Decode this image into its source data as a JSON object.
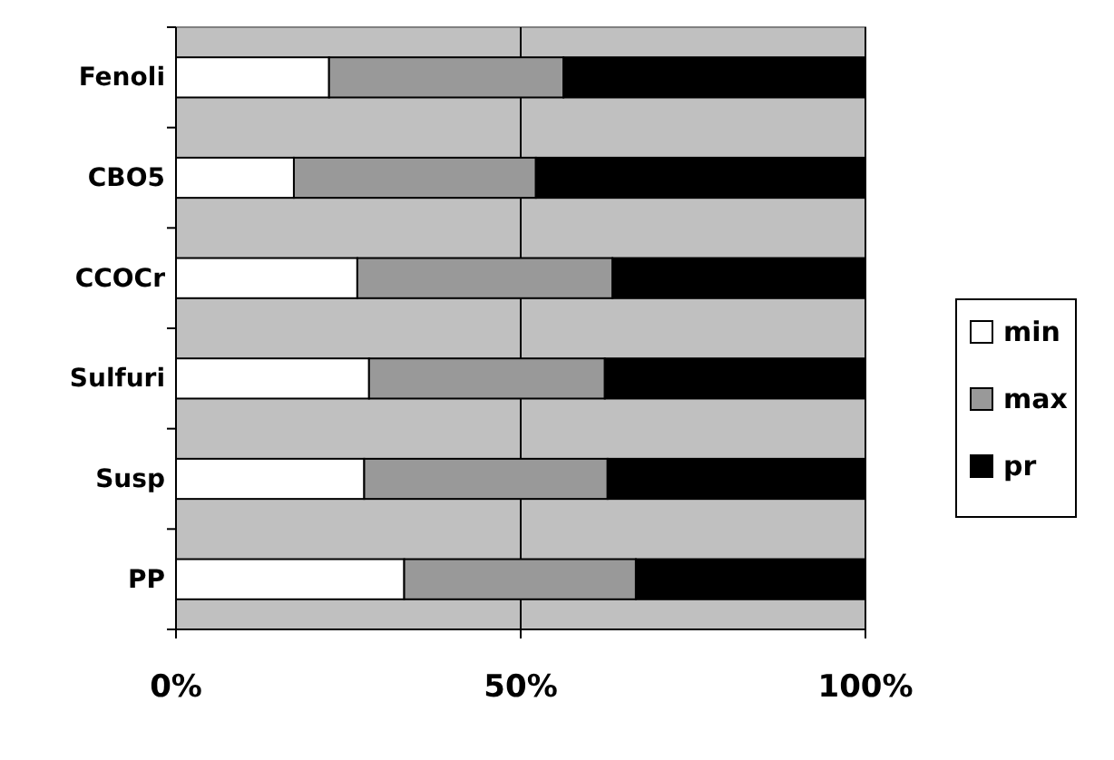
{
  "chart_data": {
    "type": "bar",
    "orientation": "horizontal",
    "stacked": true,
    "categories": [
      "Fenoli",
      "CBO5",
      "CCOCr",
      "Sulfuri",
      "Susp",
      "PP"
    ],
    "series": [
      {
        "name": "min",
        "color": "#ffffff",
        "values": [
          22.2,
          17.1,
          26.3,
          28.0,
          27.3,
          33.1
        ]
      },
      {
        "name": "max",
        "color": "#999999",
        "values": [
          34.0,
          35.1,
          37.0,
          34.2,
          35.3,
          33.6
        ]
      },
      {
        "name": "pr",
        "color": "#000000",
        "values": [
          43.8,
          47.8,
          36.7,
          37.8,
          37.4,
          33.3
        ]
      }
    ],
    "xlim": [
      0,
      100
    ],
    "xticks": [
      {
        "value": 0,
        "label": "0%"
      },
      {
        "value": 50,
        "label": "50%"
      },
      {
        "value": 100,
        "label": "100%"
      }
    ],
    "grid": "x",
    "legend": "right"
  }
}
